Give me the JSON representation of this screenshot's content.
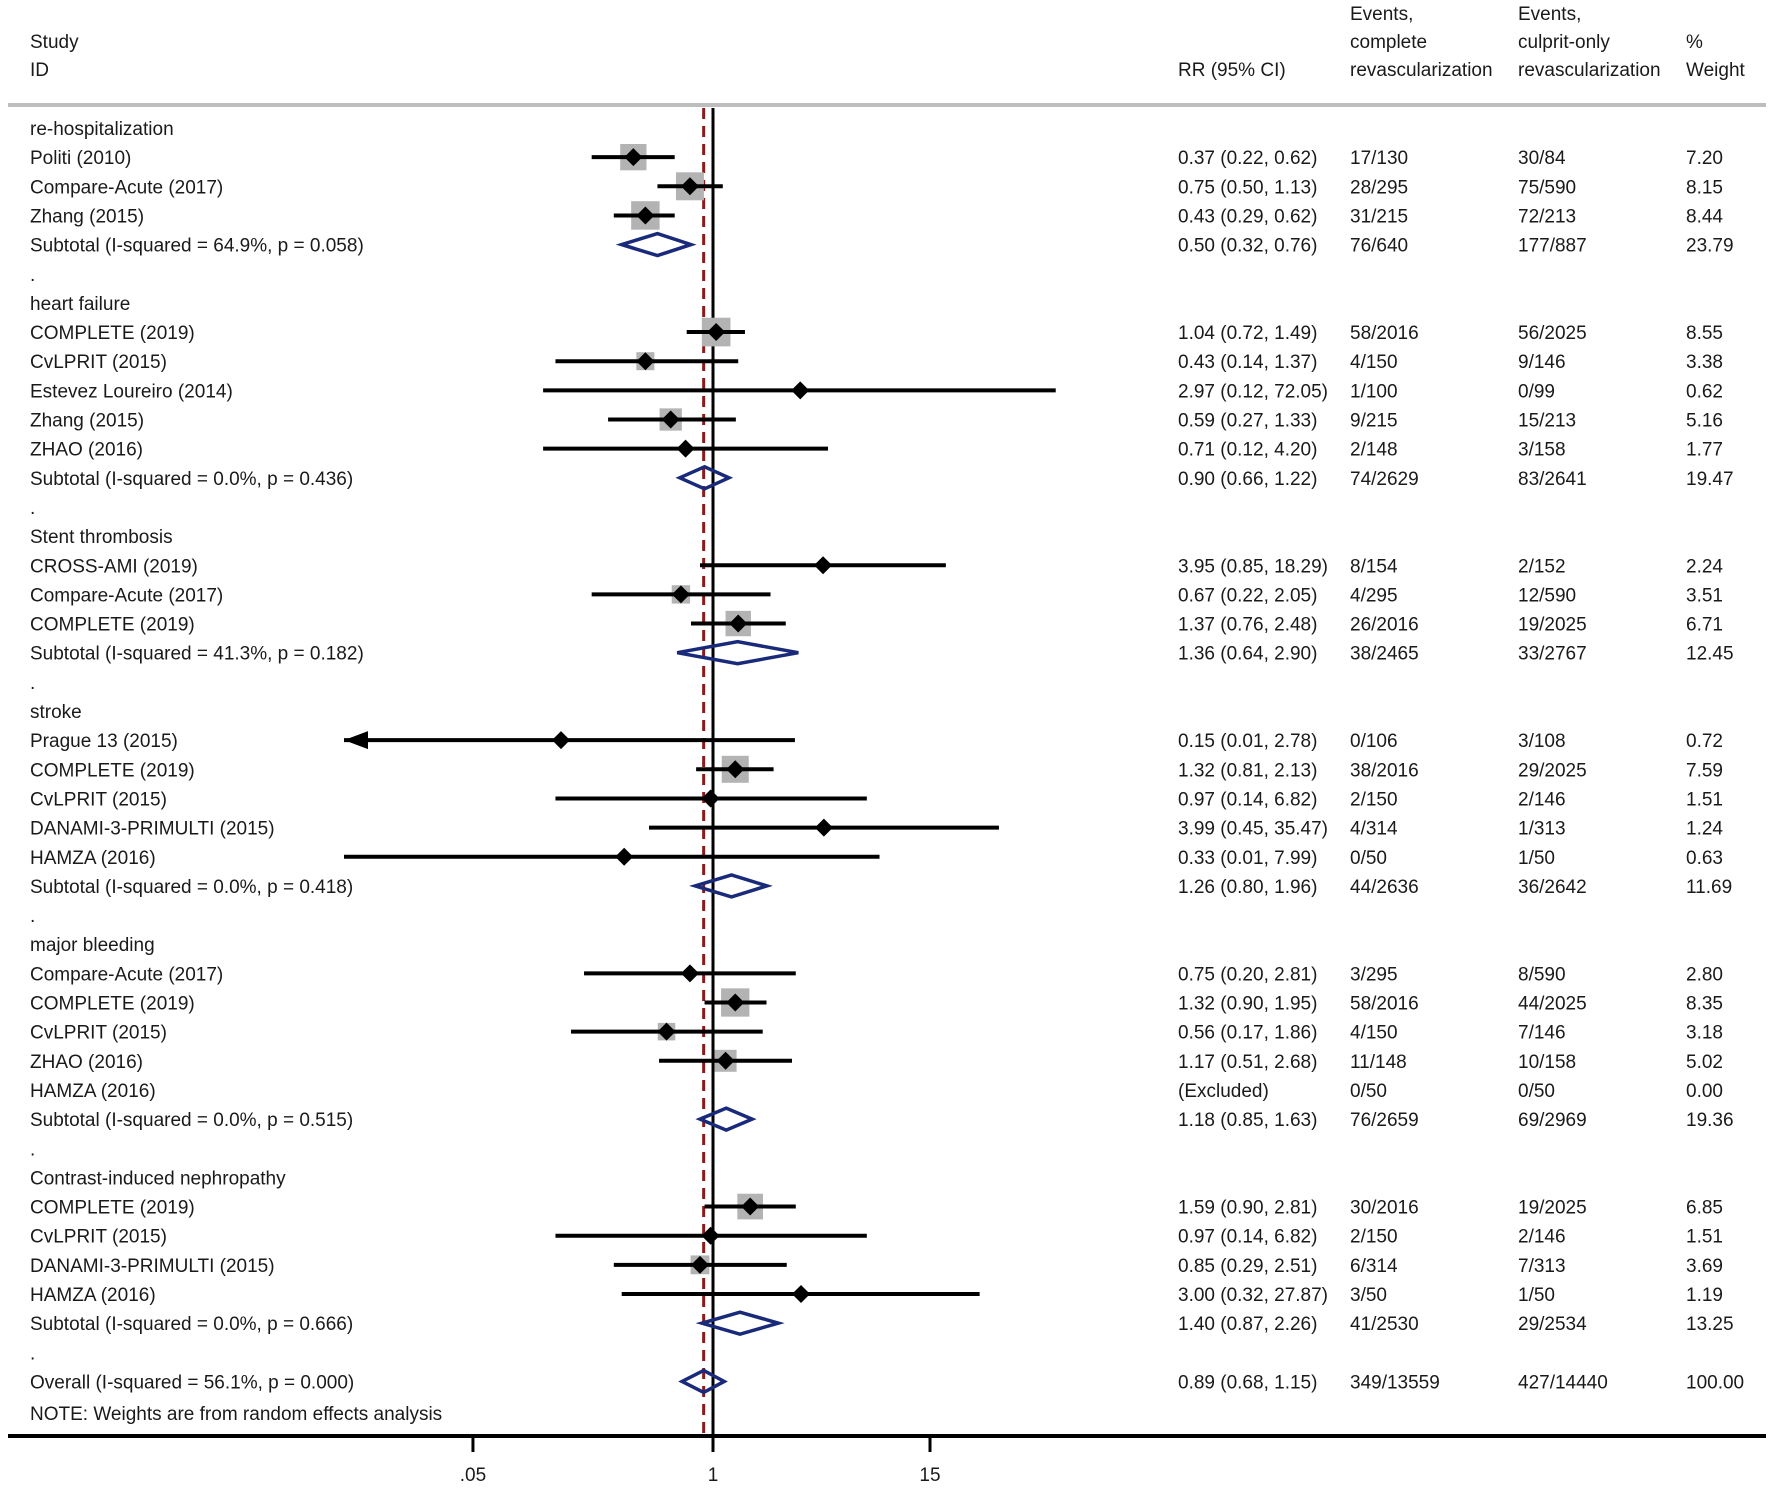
{
  "headers": {
    "study_line1": "Study",
    "study_line2": "ID",
    "rr": "RR (95% CI)",
    "events_complete_line1": "Events,",
    "events_complete_line2": "complete",
    "events_complete_line3": "revascularization",
    "events_culprit_line1": "Events,",
    "events_culprit_line2": "culprit-only",
    "events_culprit_line3": "revascularization",
    "weight_line1": "%",
    "weight_line2": "Weight"
  },
  "note": "NOTE: Weights are from random effects analysis",
  "colors": {
    "text": "#1a1a1a",
    "line": "#000000",
    "box": "#b3b3b3",
    "diamond": "#1a2a7a",
    "ref_line": "#8b1a1a",
    "rule": "#bdbdbd"
  },
  "chart_data": {
    "type": "forest",
    "scale": "log",
    "xlim": [
      0.0124,
      500
    ],
    "null_value": 1,
    "overall_estimate_line": 0.89,
    "ticks": [
      {
        "value": 0.05,
        "label": ".05"
      },
      {
        "value": 1,
        "label": "1"
      },
      {
        "value": 15,
        "label": "15"
      }
    ],
    "rows": [
      {
        "kind": "header",
        "label": "re-hospitalization"
      },
      {
        "kind": "study",
        "label": "Politi (2010)",
        "rr": 0.37,
        "lo": 0.22,
        "hi": 0.62,
        "ci": "0.37 (0.22, 0.62)",
        "ev_complete": "17/130",
        "ev_culprit": "30/84",
        "weight": "7.20"
      },
      {
        "kind": "study",
        "label": "Compare-Acute (2017)",
        "rr": 0.75,
        "lo": 0.5,
        "hi": 1.13,
        "ci": "0.75 (0.50, 1.13)",
        "ev_complete": "28/295",
        "ev_culprit": "75/590",
        "weight": "8.15"
      },
      {
        "kind": "study",
        "label": "Zhang (2015)",
        "rr": 0.43,
        "lo": 0.29,
        "hi": 0.62,
        "ci": "0.43 (0.29, 0.62)",
        "ev_complete": "31/215",
        "ev_culprit": "72/213",
        "weight": "8.44"
      },
      {
        "kind": "subtotal",
        "label": "Subtotal  (I-squared = 64.9%, p = 0.058)",
        "rr": 0.5,
        "lo": 0.32,
        "hi": 0.76,
        "ci": "0.50 (0.32, 0.76)",
        "ev_complete": "76/640",
        "ev_culprit": "177/887",
        "weight": "23.79"
      },
      {
        "kind": "sep",
        "label": "."
      },
      {
        "kind": "header",
        "label": "heart failure"
      },
      {
        "kind": "study",
        "label": "COMPLETE (2019)",
        "rr": 1.04,
        "lo": 0.72,
        "hi": 1.49,
        "ci": "1.04 (0.72, 1.49)",
        "ev_complete": "58/2016",
        "ev_culprit": "56/2025",
        "weight": "8.55"
      },
      {
        "kind": "study",
        "label": "CvLPRIT (2015)",
        "rr": 0.43,
        "lo": 0.14,
        "hi": 1.37,
        "ci": "0.43 (0.14, 1.37)",
        "ev_complete": "4/150",
        "ev_culprit": "9/146",
        "weight": "3.38"
      },
      {
        "kind": "study",
        "label": "Estevez Loureiro (2014)",
        "rr": 2.97,
        "lo": 0.12,
        "hi": 72.05,
        "ci": "2.97 (0.12, 72.05)",
        "ev_complete": "1/100",
        "ev_culprit": "0/99",
        "weight": "0.62"
      },
      {
        "kind": "study",
        "label": "Zhang (2015)",
        "rr": 0.59,
        "lo": 0.27,
        "hi": 1.33,
        "ci": "0.59 (0.27, 1.33)",
        "ev_complete": "9/215",
        "ev_culprit": "15/213",
        "weight": "5.16"
      },
      {
        "kind": "study",
        "label": "ZHAO (2016)",
        "rr": 0.71,
        "lo": 0.12,
        "hi": 4.2,
        "ci": "0.71 (0.12, 4.20)",
        "ev_complete": "2/148",
        "ev_culprit": "3/158",
        "weight": "1.77"
      },
      {
        "kind": "subtotal",
        "label": "Subtotal  (I-squared = 0.0%, p = 0.436)",
        "rr": 0.9,
        "lo": 0.66,
        "hi": 1.22,
        "ci": "0.90 (0.66, 1.22)",
        "ev_complete": "74/2629",
        "ev_culprit": "83/2641",
        "weight": "19.47"
      },
      {
        "kind": "sep",
        "label": "."
      },
      {
        "kind": "header",
        "label": "Stent thrombosis"
      },
      {
        "kind": "study",
        "label": "CROSS-AMI (2019)",
        "rr": 3.95,
        "lo": 0.85,
        "hi": 18.29,
        "ci": "3.95 (0.85, 18.29)",
        "ev_complete": "8/154",
        "ev_culprit": "2/152",
        "weight": "2.24"
      },
      {
        "kind": "study",
        "label": "Compare-Acute (2017)",
        "rr": 0.67,
        "lo": 0.22,
        "hi": 2.05,
        "ci": "0.67 (0.22, 2.05)",
        "ev_complete": "4/295",
        "ev_culprit": "12/590",
        "weight": "3.51"
      },
      {
        "kind": "study",
        "label": "COMPLETE (2019)",
        "rr": 1.37,
        "lo": 0.76,
        "hi": 2.48,
        "ci": "1.37 (0.76, 2.48)",
        "ev_complete": "26/2016",
        "ev_culprit": "19/2025",
        "weight": "6.71"
      },
      {
        "kind": "subtotal",
        "label": "Subtotal  (I-squared = 41.3%, p = 0.182)",
        "rr": 1.36,
        "lo": 0.64,
        "hi": 2.9,
        "ci": "1.36 (0.64, 2.90)",
        "ev_complete": "38/2465",
        "ev_culprit": "33/2767",
        "weight": "12.45"
      },
      {
        "kind": "sep",
        "label": "."
      },
      {
        "kind": "header",
        "label": "stroke"
      },
      {
        "kind": "study",
        "label": "Prague 13 (2015)",
        "rr": 0.15,
        "lo": 0.01,
        "hi": 2.78,
        "ci": "0.15 (0.01, 2.78)",
        "ev_complete": "0/106",
        "ev_culprit": "3/108",
        "weight": "0.72",
        "arrow_left": true
      },
      {
        "kind": "study",
        "label": "COMPLETE (2019)",
        "rr": 1.32,
        "lo": 0.81,
        "hi": 2.13,
        "ci": "1.32 (0.81, 2.13)",
        "ev_complete": "38/2016",
        "ev_culprit": "29/2025",
        "weight": "7.59"
      },
      {
        "kind": "study",
        "label": "CvLPRIT (2015)",
        "rr": 0.97,
        "lo": 0.14,
        "hi": 6.82,
        "ci": "0.97 (0.14, 6.82)",
        "ev_complete": "2/150",
        "ev_culprit": "2/146",
        "weight": "1.51"
      },
      {
        "kind": "study",
        "label": "DANAMI-3-PRIMULTI (2015)",
        "rr": 3.99,
        "lo": 0.45,
        "hi": 35.47,
        "ci": "3.99 (0.45, 35.47)",
        "ev_complete": "4/314",
        "ev_culprit": "1/313",
        "weight": "1.24"
      },
      {
        "kind": "study",
        "label": "HAMZA (2016)",
        "rr": 0.33,
        "lo": 0.01,
        "hi": 7.99,
        "ci": "0.33 (0.01, 7.99)",
        "ev_complete": "0/50",
        "ev_culprit": "1/50",
        "weight": "0.63"
      },
      {
        "kind": "subtotal",
        "label": "Subtotal  (I-squared = 0.0%, p = 0.418)",
        "rr": 1.26,
        "lo": 0.8,
        "hi": 1.96,
        "ci": "1.26 (0.80, 1.96)",
        "ev_complete": "44/2636",
        "ev_culprit": "36/2642",
        "weight": "11.69"
      },
      {
        "kind": "sep",
        "label": "."
      },
      {
        "kind": "header",
        "label": "major bleeding"
      },
      {
        "kind": "study",
        "label": "Compare-Acute (2017)",
        "rr": 0.75,
        "lo": 0.2,
        "hi": 2.81,
        "ci": "0.75 (0.20, 2.81)",
        "ev_complete": "3/295",
        "ev_culprit": "8/590",
        "weight": "2.80"
      },
      {
        "kind": "study",
        "label": "COMPLETE (2019)",
        "rr": 1.32,
        "lo": 0.9,
        "hi": 1.95,
        "ci": "1.32 (0.90, 1.95)",
        "ev_complete": "58/2016",
        "ev_culprit": "44/2025",
        "weight": "8.35"
      },
      {
        "kind": "study",
        "label": "CvLPRIT (2015)",
        "rr": 0.56,
        "lo": 0.17,
        "hi": 1.86,
        "ci": "0.56 (0.17, 1.86)",
        "ev_complete": "4/150",
        "ev_culprit": "7/146",
        "weight": "3.18"
      },
      {
        "kind": "study",
        "label": "ZHAO (2016)",
        "rr": 1.17,
        "lo": 0.51,
        "hi": 2.68,
        "ci": "1.17 (0.51, 2.68)",
        "ev_complete": "11/148",
        "ev_culprit": "10/158",
        "weight": "5.02"
      },
      {
        "kind": "study",
        "label": "HAMZA (2016)",
        "rr": null,
        "lo": null,
        "hi": null,
        "ci": "(Excluded)",
        "ev_complete": "0/50",
        "ev_culprit": "0/50",
        "weight": "0.00"
      },
      {
        "kind": "subtotal",
        "label": "Subtotal  (I-squared = 0.0%, p = 0.515)",
        "rr": 1.18,
        "lo": 0.85,
        "hi": 1.63,
        "ci": "1.18 (0.85, 1.63)",
        "ev_complete": "76/2659",
        "ev_culprit": "69/2969",
        "weight": "19.36"
      },
      {
        "kind": "sep",
        "label": "."
      },
      {
        "kind": "header",
        "label": "Contrast-induced nephropathy"
      },
      {
        "kind": "study",
        "label": "COMPLETE (2019)",
        "rr": 1.59,
        "lo": 0.9,
        "hi": 2.81,
        "ci": "1.59 (0.90, 2.81)",
        "ev_complete": "30/2016",
        "ev_culprit": "19/2025",
        "weight": "6.85"
      },
      {
        "kind": "study",
        "label": "CvLPRIT (2015)",
        "rr": 0.97,
        "lo": 0.14,
        "hi": 6.82,
        "ci": "0.97 (0.14, 6.82)",
        "ev_complete": "2/150",
        "ev_culprit": "2/146",
        "weight": "1.51"
      },
      {
        "kind": "study",
        "label": "DANAMI-3-PRIMULTI (2015)",
        "rr": 0.85,
        "lo": 0.29,
        "hi": 2.51,
        "ci": "0.85 (0.29, 2.51)",
        "ev_complete": "6/314",
        "ev_culprit": "7/313",
        "weight": "3.69"
      },
      {
        "kind": "study",
        "label": "HAMZA (2016)",
        "rr": 3.0,
        "lo": 0.32,
        "hi": 27.87,
        "ci": "3.00 (0.32, 27.87)",
        "ev_complete": "3/50",
        "ev_culprit": "1/50",
        "weight": "1.19"
      },
      {
        "kind": "subtotal",
        "label": "Subtotal  (I-squared = 0.0%, p = 0.666)",
        "rr": 1.4,
        "lo": 0.87,
        "hi": 2.26,
        "ci": "1.40 (0.87, 2.26)",
        "ev_complete": "41/2530",
        "ev_culprit": "29/2534",
        "weight": "13.25"
      },
      {
        "kind": "sep",
        "label": "."
      },
      {
        "kind": "subtotal",
        "label": "Overall  (I-squared = 56.1%, p = 0.000)",
        "rr": 0.89,
        "lo": 0.68,
        "hi": 1.15,
        "ci": "0.89 (0.68, 1.15)",
        "ev_complete": "349/13559",
        "ev_culprit": "427/14440",
        "weight": "100.00"
      }
    ]
  }
}
